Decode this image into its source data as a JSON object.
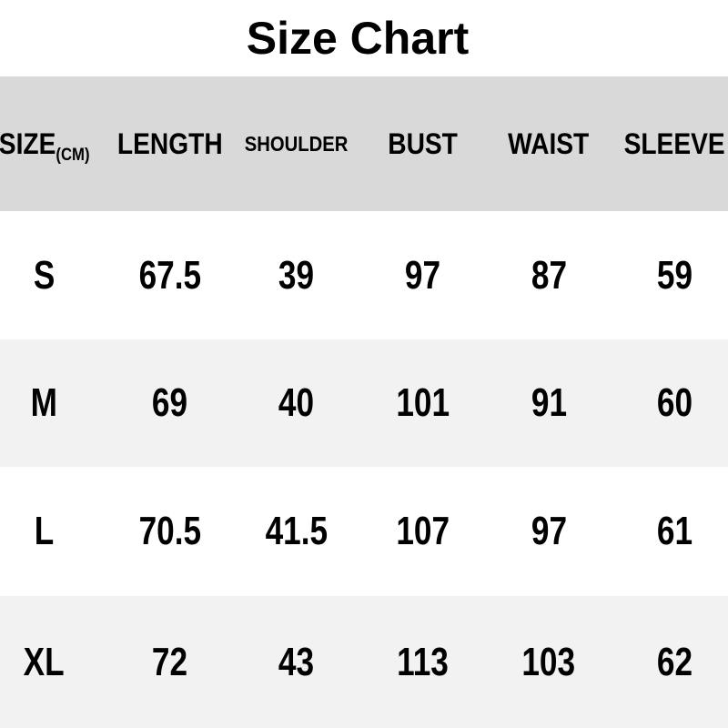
{
  "title": "Size Chart",
  "table": {
    "header": {
      "size_label": "SIZE",
      "size_unit": "(CM)",
      "columns": [
        "LENGTH",
        "SHOULDER",
        "BUST",
        "WAIST",
        "SLEEVE"
      ]
    },
    "rows": [
      {
        "size": "S",
        "values": [
          "67.5",
          "39",
          "97",
          "87",
          "59"
        ]
      },
      {
        "size": "M",
        "values": [
          "69",
          "40",
          "101",
          "91",
          "60"
        ]
      },
      {
        "size": "L",
        "values": [
          "70.5",
          "41.5",
          "107",
          "97",
          "61"
        ]
      },
      {
        "size": "XL",
        "values": [
          "72",
          "43",
          "113",
          "103",
          "62"
        ]
      }
    ]
  },
  "colors": {
    "header_bg": "#d9d9d9",
    "stripe_bg": "#f2f2f2",
    "row_bg": "#ffffff",
    "text": "#000000"
  },
  "chart_data": {
    "type": "table",
    "title": "Size Chart",
    "unit": "CM",
    "columns": [
      "SIZE",
      "LENGTH",
      "SHOULDER",
      "BUST",
      "WAIST",
      "SLEEVE"
    ],
    "rows": [
      [
        "S",
        67.5,
        39,
        97,
        87,
        59
      ],
      [
        "M",
        69,
        40,
        101,
        91,
        60
      ],
      [
        "L",
        70.5,
        41.5,
        107,
        97,
        61
      ],
      [
        "XL",
        72,
        43,
        113,
        103,
        62
      ]
    ]
  }
}
